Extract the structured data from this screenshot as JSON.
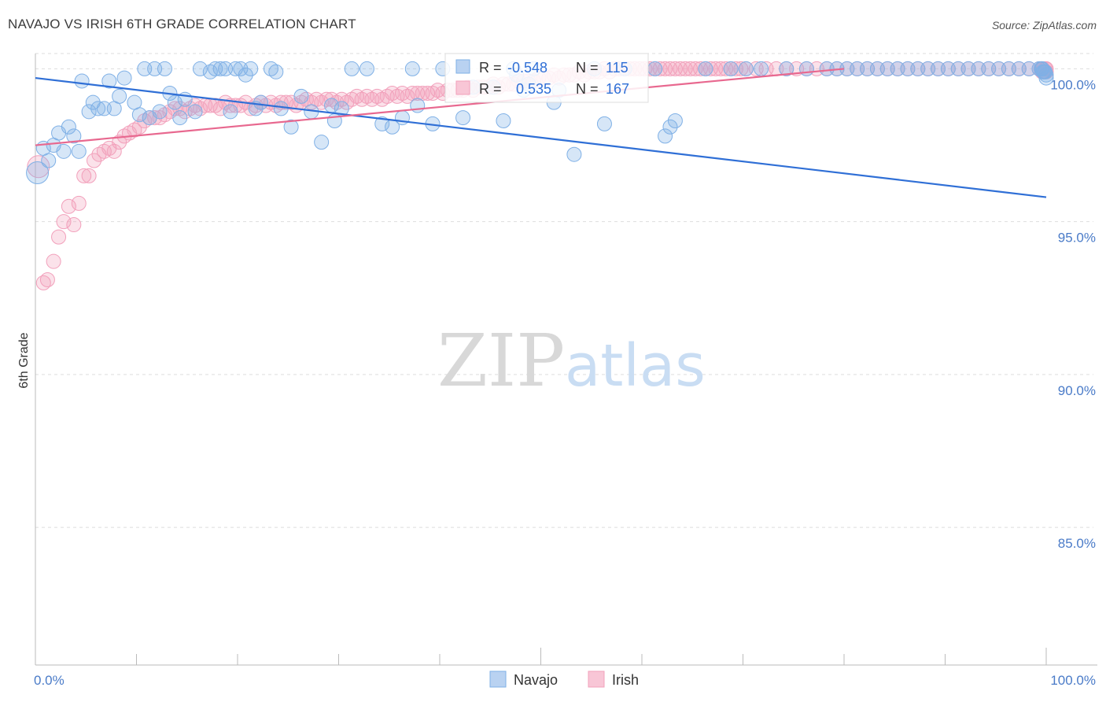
{
  "title": "NAVAJO VS IRISH 6TH GRADE CORRELATION CHART",
  "source": "Source: ZipAtlas.com",
  "watermark": {
    "zip": "ZIP",
    "atlas": "atlas"
  },
  "colors": {
    "navajo": "#7fb0e6",
    "navajo_line": "#2f6fd6",
    "irish": "#f2a0bb",
    "irish_line": "#e8688f",
    "tick": "#4a7bc8",
    "grid": "#dddddd"
  },
  "stats": [
    {
      "r_label": "R =",
      "r": "-0.548",
      "n_label": "N =",
      "n": "115"
    },
    {
      "r_label": "R =",
      "r": "0.535",
      "n_label": "N =",
      "n": "167"
    }
  ],
  "legend": [
    "Navajo",
    "Irish"
  ],
  "chart_data": {
    "type": "scatter",
    "title": "NAVAJO VS IRISH 6TH GRADE CORRELATION CHART",
    "xlabel": "",
    "ylabel": "6th Grade",
    "xlim": [
      0,
      100
    ],
    "ylim": [
      80.5,
      100.5
    ],
    "x_ticks": [
      "0.0%",
      "100.0%"
    ],
    "y_ticks": [
      {
        "value": 85,
        "label": "85.0%"
      },
      {
        "value": 90,
        "label": "90.0%"
      },
      {
        "value": 95,
        "label": "95.0%"
      },
      {
        "value": 100,
        "label": "100.0%"
      }
    ],
    "grid": true,
    "legend_position": "bottom",
    "series": [
      {
        "name": "Navajo",
        "trend": [
          [
            0,
            99.7
          ],
          [
            100,
            95.8
          ]
        ],
        "points": [
          [
            0.2,
            96.6
          ],
          [
            0.8,
            97.4
          ],
          [
            1.3,
            97.0
          ],
          [
            1.8,
            97.5
          ],
          [
            2.3,
            97.9
          ],
          [
            2.8,
            97.3
          ],
          [
            3.3,
            98.1
          ],
          [
            3.8,
            97.8
          ],
          [
            4.3,
            97.3
          ],
          [
            4.6,
            99.6
          ],
          [
            5.3,
            98.6
          ],
          [
            5.7,
            98.9
          ],
          [
            6.2,
            98.7
          ],
          [
            6.8,
            98.7
          ],
          [
            7.3,
            99.6
          ],
          [
            7.8,
            98.7
          ],
          [
            8.3,
            99.1
          ],
          [
            8.8,
            99.7
          ],
          [
            9.8,
            98.9
          ],
          [
            10.3,
            98.5
          ],
          [
            10.8,
            100
          ],
          [
            11.3,
            98.4
          ],
          [
            11.8,
            100
          ],
          [
            12.3,
            98.6
          ],
          [
            12.8,
            100
          ],
          [
            13.3,
            99.2
          ],
          [
            13.8,
            98.9
          ],
          [
            14.3,
            98.4
          ],
          [
            14.8,
            99.0
          ],
          [
            15.8,
            98.6
          ],
          [
            16.3,
            100
          ],
          [
            17.3,
            99.9
          ],
          [
            17.8,
            100
          ],
          [
            18.3,
            100
          ],
          [
            18.8,
            100
          ],
          [
            19.3,
            98.6
          ],
          [
            19.8,
            100
          ],
          [
            20.3,
            100
          ],
          [
            20.8,
            99.8
          ],
          [
            21.3,
            100
          ],
          [
            21.8,
            98.7
          ],
          [
            22.3,
            98.9
          ],
          [
            23.3,
            100
          ],
          [
            23.8,
            99.9
          ],
          [
            24.3,
            98.7
          ],
          [
            25.3,
            98.1
          ],
          [
            26.3,
            99.1
          ],
          [
            27.3,
            98.6
          ],
          [
            28.3,
            97.6
          ],
          [
            29.3,
            98.8
          ],
          [
            29.6,
            98.3
          ],
          [
            30.3,
            98.7
          ],
          [
            31.3,
            100
          ],
          [
            32.8,
            100
          ],
          [
            34.3,
            98.2
          ],
          [
            35.3,
            98.1
          ],
          [
            36.3,
            98.4
          ],
          [
            37.3,
            100
          ],
          [
            37.8,
            98.8
          ],
          [
            39.3,
            98.2
          ],
          [
            40.3,
            100
          ],
          [
            42.3,
            98.4
          ],
          [
            43.3,
            99.4
          ],
          [
            45.3,
            99.4
          ],
          [
            46.3,
            98.3
          ],
          [
            47.3,
            100
          ],
          [
            47.6,
            99.8
          ],
          [
            48.3,
            99.3
          ],
          [
            48.8,
            99.5
          ],
          [
            49.3,
            100
          ],
          [
            51.3,
            98.9
          ],
          [
            51.8,
            99.3
          ],
          [
            53.3,
            97.2
          ],
          [
            55.3,
            100
          ],
          [
            56.3,
            98.2
          ],
          [
            58.3,
            100
          ],
          [
            61.3,
            100
          ],
          [
            62.3,
            97.8
          ],
          [
            62.8,
            98.1
          ],
          [
            63.3,
            98.3
          ],
          [
            66.3,
            100
          ],
          [
            68.8,
            100
          ],
          [
            70.3,
            100
          ],
          [
            71.8,
            100
          ],
          [
            74.3,
            100
          ],
          [
            76.3,
            100
          ],
          [
            78.3,
            100
          ],
          [
            79.3,
            100
          ],
          [
            80.3,
            100
          ],
          [
            81.3,
            100
          ],
          [
            82.3,
            100
          ],
          [
            83.3,
            100
          ],
          [
            84.3,
            100
          ],
          [
            85.3,
            100
          ],
          [
            86.3,
            100
          ],
          [
            87.3,
            100
          ],
          [
            88.3,
            100
          ],
          [
            89.3,
            100
          ],
          [
            90.3,
            100
          ],
          [
            91.3,
            100
          ],
          [
            92.3,
            100
          ],
          [
            93.3,
            100
          ],
          [
            94.3,
            100
          ],
          [
            95.3,
            100
          ],
          [
            96.3,
            100
          ],
          [
            97.3,
            100
          ],
          [
            98.3,
            100
          ],
          [
            99.3,
            100
          ],
          [
            99.6,
            100
          ],
          [
            99.8,
            99.9
          ],
          [
            100,
            99.8
          ],
          [
            100,
            99.7
          ],
          [
            99.9,
            99.9
          ],
          [
            99.5,
            100
          ],
          [
            99.7,
            99.9
          ]
        ]
      },
      {
        "name": "Irish",
        "trend": [
          [
            0,
            97.5
          ],
          [
            80,
            100
          ]
        ],
        "points": [
          [
            0.3,
            96.8
          ],
          [
            0.8,
            93.0
          ],
          [
            1.2,
            93.1
          ],
          [
            1.8,
            93.7
          ],
          [
            2.3,
            94.5
          ],
          [
            2.8,
            95.0
          ],
          [
            3.3,
            95.5
          ],
          [
            3.8,
            94.9
          ],
          [
            4.3,
            95.6
          ],
          [
            4.8,
            96.5
          ],
          [
            5.3,
            96.5
          ],
          [
            5.8,
            97.0
          ],
          [
            6.3,
            97.2
          ],
          [
            6.8,
            97.3
          ],
          [
            7.3,
            97.4
          ],
          [
            7.8,
            97.3
          ],
          [
            8.3,
            97.6
          ],
          [
            8.8,
            97.8
          ],
          [
            9.3,
            97.9
          ],
          [
            9.8,
            98.0
          ],
          [
            10.3,
            98.1
          ],
          [
            10.8,
            98.3
          ],
          [
            11.3,
            98.4
          ],
          [
            11.8,
            98.4
          ],
          [
            12.3,
            98.4
          ],
          [
            12.8,
            98.5
          ],
          [
            13.3,
            98.6
          ],
          [
            13.8,
            98.7
          ],
          [
            14.3,
            98.7
          ],
          [
            14.8,
            98.6
          ],
          [
            15.3,
            98.7
          ],
          [
            15.8,
            98.8
          ],
          [
            16.3,
            98.7
          ],
          [
            16.8,
            98.8
          ],
          [
            17.3,
            98.8
          ],
          [
            17.8,
            98.8
          ],
          [
            18.3,
            98.7
          ],
          [
            18.8,
            98.9
          ],
          [
            19.3,
            98.8
          ],
          [
            19.8,
            98.8
          ],
          [
            20.3,
            98.8
          ],
          [
            20.8,
            98.9
          ],
          [
            21.3,
            98.7
          ],
          [
            21.8,
            98.8
          ],
          [
            22.3,
            98.9
          ],
          [
            22.8,
            98.8
          ],
          [
            23.3,
            98.9
          ],
          [
            23.8,
            98.8
          ],
          [
            24.3,
            98.9
          ],
          [
            24.8,
            98.9
          ],
          [
            25.3,
            98.9
          ],
          [
            25.8,
            98.8
          ],
          [
            26.3,
            98.9
          ],
          [
            26.8,
            99.0
          ],
          [
            27.3,
            98.9
          ],
          [
            27.8,
            99.0
          ],
          [
            28.3,
            98.9
          ],
          [
            28.8,
            99.0
          ],
          [
            29.3,
            99.0
          ],
          [
            29.8,
            98.9
          ],
          [
            30.3,
            99.0
          ],
          [
            30.8,
            98.9
          ],
          [
            31.3,
            99.0
          ],
          [
            31.8,
            99.1
          ],
          [
            32.3,
            99.0
          ],
          [
            32.8,
            99.1
          ],
          [
            33.3,
            99.0
          ],
          [
            33.8,
            99.1
          ],
          [
            34.3,
            99.0
          ],
          [
            34.8,
            99.1
          ],
          [
            35.3,
            99.2
          ],
          [
            35.8,
            99.1
          ],
          [
            36.3,
            99.2
          ],
          [
            36.8,
            99.1
          ],
          [
            37.3,
            99.2
          ],
          [
            37.8,
            99.2
          ],
          [
            38.3,
            99.2
          ],
          [
            38.8,
            99.2
          ],
          [
            39.3,
            99.2
          ],
          [
            39.8,
            99.3
          ],
          [
            40.3,
            99.2
          ],
          [
            40.8,
            99.3
          ],
          [
            41.3,
            99.3
          ],
          [
            41.8,
            99.3
          ],
          [
            42.3,
            99.3
          ],
          [
            42.8,
            99.4
          ],
          [
            43.3,
            99.3
          ],
          [
            43.8,
            99.4
          ],
          [
            44.3,
            99.4
          ],
          [
            44.8,
            99.4
          ],
          [
            45.3,
            99.5
          ],
          [
            45.8,
            99.4
          ],
          [
            46.3,
            99.5
          ],
          [
            46.8,
            99.5
          ],
          [
            47.3,
            99.5
          ],
          [
            47.8,
            99.6
          ],
          [
            48.3,
            99.6
          ],
          [
            48.8,
            99.6
          ],
          [
            49.3,
            99.6
          ],
          [
            49.8,
            99.7
          ],
          [
            50.3,
            99.7
          ],
          [
            50.8,
            99.7
          ],
          [
            51.3,
            99.8
          ],
          [
            51.8,
            99.7
          ],
          [
            52.3,
            99.8
          ],
          [
            52.8,
            99.8
          ],
          [
            53.3,
            99.8
          ],
          [
            53.8,
            99.9
          ],
          [
            54.3,
            99.8
          ],
          [
            54.8,
            99.9
          ],
          [
            55.3,
            99.9
          ],
          [
            55.8,
            99.9
          ],
          [
            56.3,
            100
          ],
          [
            56.8,
            99.9
          ],
          [
            57.3,
            100
          ],
          [
            57.8,
            100
          ],
          [
            58.3,
            100
          ],
          [
            58.8,
            100
          ],
          [
            59.3,
            100
          ],
          [
            59.8,
            100
          ],
          [
            60.3,
            100
          ],
          [
            60.8,
            100
          ],
          [
            61.3,
            100
          ],
          [
            61.8,
            100
          ],
          [
            62.3,
            100
          ],
          [
            62.8,
            100
          ],
          [
            63.3,
            100
          ],
          [
            63.8,
            100
          ],
          [
            64.3,
            100
          ],
          [
            64.8,
            100
          ],
          [
            65.3,
            100
          ],
          [
            65.8,
            100
          ],
          [
            66.3,
            100
          ],
          [
            66.8,
            100
          ],
          [
            67.3,
            100
          ],
          [
            67.8,
            100
          ],
          [
            68.3,
            100
          ],
          [
            68.8,
            100
          ],
          [
            69.3,
            100
          ],
          [
            69.8,
            100
          ],
          [
            70.3,
            100
          ],
          [
            71.3,
            100
          ],
          [
            72.3,
            100
          ],
          [
            73.3,
            100
          ],
          [
            74.3,
            100
          ],
          [
            75.3,
            100
          ],
          [
            76.3,
            100
          ],
          [
            77.3,
            100
          ],
          [
            78.3,
            100
          ],
          [
            79.3,
            100
          ],
          [
            80.3,
            100
          ],
          [
            81.3,
            100
          ],
          [
            82.3,
            100
          ],
          [
            83.3,
            100
          ],
          [
            84.3,
            100
          ],
          [
            85.3,
            100
          ],
          [
            86.3,
            100
          ],
          [
            87.3,
            100
          ],
          [
            88.3,
            100
          ],
          [
            89.3,
            100
          ],
          [
            90.3,
            100
          ],
          [
            91.3,
            100
          ],
          [
            92.3,
            100
          ],
          [
            93.3,
            100
          ],
          [
            94.3,
            100
          ],
          [
            95.3,
            100
          ],
          [
            96.3,
            100
          ],
          [
            97.3,
            100
          ],
          [
            98.3,
            100
          ],
          [
            99.3,
            100
          ],
          [
            100,
            100
          ],
          [
            100,
            99.9
          ],
          [
            99.9,
            100
          ],
          [
            99.8,
            99.9
          ],
          [
            99.7,
            100
          ],
          [
            99.6,
            99.9
          ],
          [
            99.5,
            100
          ]
        ]
      }
    ]
  }
}
